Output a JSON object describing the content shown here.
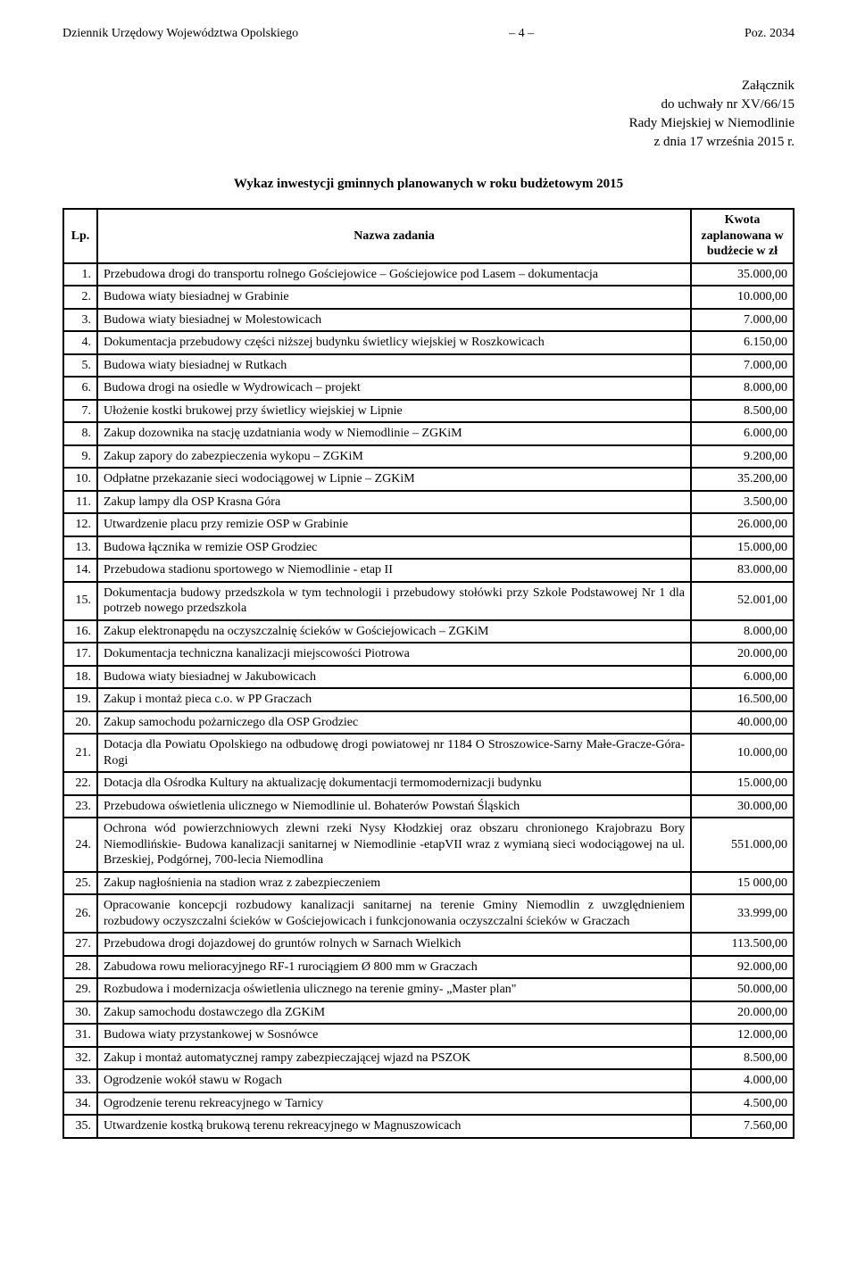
{
  "header": {
    "left": "Dziennik Urzędowy Województwa Opolskiego",
    "center": "– 4 –",
    "right": "Poz. 2034"
  },
  "attachment": {
    "line1": "Załącznik",
    "line2": "do uchwały nr XV/66/15",
    "line3": "Rady Miejskiej w Niemodlinie",
    "line4": "z dnia 17 września 2015 r."
  },
  "title": "Wykaz inwestycji gminnych planowanych w roku budżetowym 2015",
  "columns": {
    "lp": "Lp.",
    "name": "Nazwa zadania",
    "amount": "Kwota zaplanowana w budżecie w zł"
  },
  "rows": [
    {
      "n": "1.",
      "name": "Przebudowa drogi do transportu rolnego Gościejowice – Gościejowice pod Lasem – dokumentacja",
      "amt": "35.000,00"
    },
    {
      "n": "2.",
      "name": "Budowa wiaty biesiadnej w Grabinie",
      "amt": "10.000,00"
    },
    {
      "n": "3.",
      "name": "Budowa wiaty biesiadnej w Molestowicach",
      "amt": "7.000,00"
    },
    {
      "n": "4.",
      "name": "Dokumentacja przebudowy części niższej budynku świetlicy wiejskiej w Roszkowicach",
      "amt": "6.150,00"
    },
    {
      "n": "5.",
      "name": "Budowa wiaty biesiadnej w Rutkach",
      "amt": "7.000,00"
    },
    {
      "n": "6.",
      "name": "Budowa drogi na osiedle w Wydrowicach – projekt",
      "amt": "8.000,00"
    },
    {
      "n": "7.",
      "name": "Ułożenie kostki brukowej przy świetlicy wiejskiej w Lipnie",
      "amt": "8.500,00"
    },
    {
      "n": "8.",
      "name": "Zakup dozownika na stację uzdatniania wody w Niemodlinie – ZGKiM",
      "amt": "6.000,00"
    },
    {
      "n": "9.",
      "name": "Zakup zapory do zabezpieczenia wykopu – ZGKiM",
      "amt": "9.200,00"
    },
    {
      "n": "10.",
      "name": "Odpłatne przekazanie sieci wodociągowej w Lipnie – ZGKiM",
      "amt": "35.200,00"
    },
    {
      "n": "11.",
      "name": "Zakup lampy dla OSP Krasna Góra",
      "amt": "3.500,00"
    },
    {
      "n": "12.",
      "name": "Utwardzenie placu przy remizie OSP w Grabinie",
      "amt": "26.000,00"
    },
    {
      "n": "13.",
      "name": "Budowa łącznika w remizie OSP Grodziec",
      "amt": "15.000,00"
    },
    {
      "n": "14.",
      "name": "Przebudowa stadionu sportowego w Niemodlinie - etap II",
      "amt": "83.000,00"
    },
    {
      "n": "15.",
      "name": "Dokumentacja budowy przedszkola w tym technologii i przebudowy stołówki przy Szkole Podstawowej Nr 1 dla potrzeb nowego przedszkola",
      "amt": "52.001,00"
    },
    {
      "n": "16.",
      "name": "Zakup elektronapędu na oczyszczalnię ścieków w Gościejowicach – ZGKiM",
      "amt": "8.000,00"
    },
    {
      "n": "17.",
      "name": "Dokumentacja techniczna kanalizacji miejscowości Piotrowa",
      "amt": "20.000,00"
    },
    {
      "n": "18.",
      "name": "Budowa wiaty biesiadnej w Jakubowicach",
      "amt": "6.000,00"
    },
    {
      "n": "19.",
      "name": "Zakup i montaż pieca c.o. w PP Graczach",
      "amt": "16.500,00"
    },
    {
      "n": "20.",
      "name": "Zakup samochodu pożarniczego dla OSP Grodziec",
      "amt": "40.000,00"
    },
    {
      "n": "21.",
      "name": "Dotacja dla Powiatu Opolskiego na odbudowę drogi powiatowej nr 1184 O Stroszowice-Sarny Małe-Gracze-Góra-Rogi",
      "amt": "10.000,00"
    },
    {
      "n": "22.",
      "name": "Dotacja dla Ośrodka Kultury na aktualizację dokumentacji termomodernizacji budynku",
      "amt": "15.000,00"
    },
    {
      "n": "23.",
      "name": "Przebudowa oświetlenia ulicznego w Niemodlinie ul. Bohaterów Powstań Śląskich",
      "amt": "30.000,00"
    },
    {
      "n": "24.",
      "name": "Ochrona wód powierzchniowych zlewni rzeki Nysy Kłodzkiej oraz obszaru chronionego Krajobrazu Bory Niemodlińskie- Budowa kanalizacji sanitarnej w Niemodlinie -etapVII wraz z wymianą sieci wodociągowej na ul. Brzeskiej, Podgórnej, 700-lecia Niemodlina",
      "amt": "551.000,00"
    },
    {
      "n": "25.",
      "name": "Zakup nagłośnienia na stadion wraz z zabezpieczeniem",
      "amt": "15 000,00"
    },
    {
      "n": "26.",
      "name": "Opracowanie koncepcji rozbudowy kanalizacji sanitarnej na terenie Gminy Niemodlin z uwzględnieniem rozbudowy oczyszczalni ścieków w Gościejowicach i funkcjonowania oczyszczalni ścieków w Graczach",
      "amt": "33.999,00"
    },
    {
      "n": "27.",
      "name": "Przebudowa drogi dojazdowej do gruntów rolnych w Sarnach Wielkich",
      "amt": "113.500,00"
    },
    {
      "n": "28.",
      "name": "Zabudowa rowu melioracyjnego RF-1 rurociągiem Ø 800 mm w Graczach",
      "amt": "92.000,00"
    },
    {
      "n": "29.",
      "name": "Rozbudowa i modernizacja oświetlenia ulicznego na terenie gminy- „Master plan\"",
      "amt": "50.000,00"
    },
    {
      "n": "30.",
      "name": "Zakup samochodu dostawczego dla ZGKiM",
      "amt": "20.000,00"
    },
    {
      "n": "31.",
      "name": "Budowa wiaty przystankowej w Sosnówce",
      "amt": "12.000,00"
    },
    {
      "n": "32.",
      "name": "Zakup i montaż automatycznej rampy zabezpieczającej wjazd na PSZOK",
      "amt": "8.500,00"
    },
    {
      "n": "33.",
      "name": "Ogrodzenie wokół stawu w Rogach",
      "amt": "4.000,00"
    },
    {
      "n": "34.",
      "name": "Ogrodzenie terenu rekreacyjnego w Tarnicy",
      "amt": "4.500,00"
    },
    {
      "n": "35.",
      "name": "Utwardzenie kostką brukową terenu rekreacyjnego w Magnuszowicach",
      "amt": "7.560,00"
    }
  ]
}
